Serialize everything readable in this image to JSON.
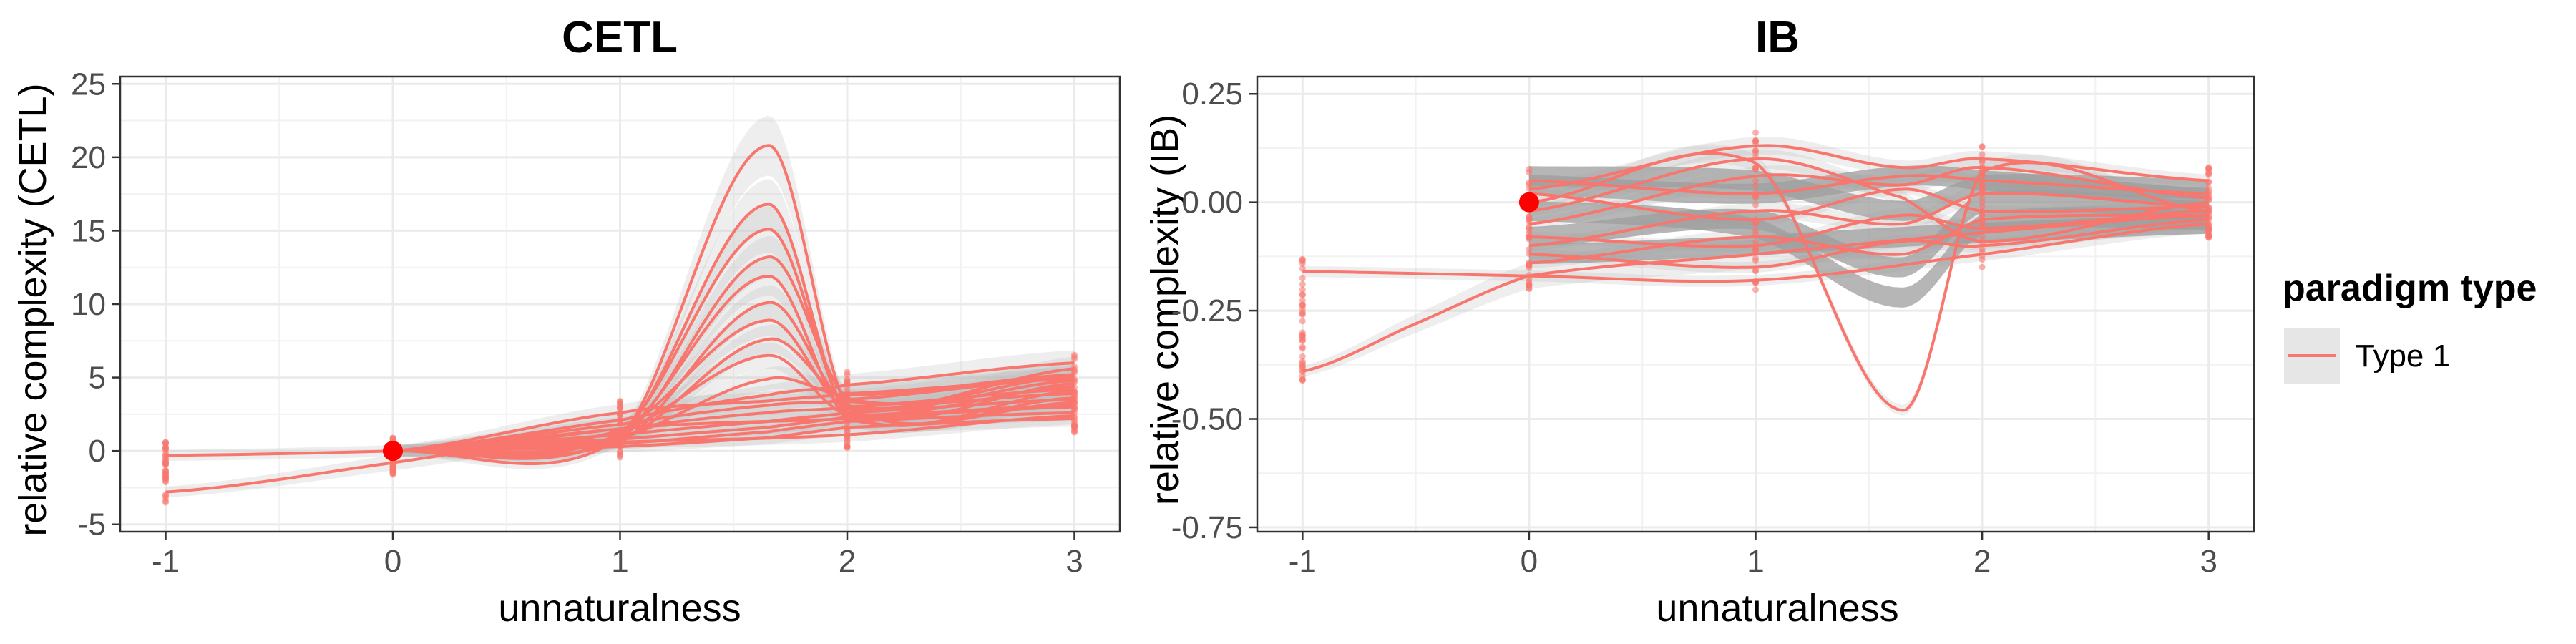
{
  "chart_data": [
    {
      "type": "line",
      "title": "CETL",
      "xlabel": "unnaturalness",
      "ylabel": "relative complexity (CETL)",
      "x_ticks": [
        -1,
        0,
        1,
        2,
        3
      ],
      "x_tick_labels": [
        "-1",
        "0",
        "1",
        "2",
        "3"
      ],
      "y_ticks": [
        -5,
        0,
        5,
        10,
        15,
        20,
        25
      ],
      "y_tick_labels": [
        "-5",
        "0",
        "5",
        "10",
        "15",
        "20",
        "25"
      ],
      "xlim": [
        -1.2,
        3.2
      ],
      "ylim": [
        -5.5,
        25.5
      ],
      "grid": true,
      "reference_point": {
        "x": 0,
        "y": 0,
        "color": "#ff0000"
      },
      "series": [
        {
          "x": [
            -1,
            0,
            1,
            2,
            3
          ],
          "values": [
            -2.8,
            -0.8,
            1.5,
            2.2,
            3.0
          ]
        },
        {
          "x": [
            -1,
            0,
            1,
            2,
            3
          ],
          "values": [
            -0.3,
            0.0,
            0.6,
            1.1,
            2.4
          ]
        },
        {
          "x": [
            0,
            1,
            1.65,
            2,
            3
          ],
          "values": [
            0.0,
            0.9,
            20.8,
            3.0,
            3.6
          ]
        },
        {
          "x": [
            0,
            1,
            1.65,
            2,
            3
          ],
          "values": [
            0.0,
            1.0,
            16.8,
            2.4,
            4.1
          ]
        },
        {
          "x": [
            0,
            1,
            1.65,
            2,
            3
          ],
          "values": [
            0.0,
            1.2,
            15.1,
            2.7,
            4.6
          ]
        },
        {
          "x": [
            0,
            1,
            1.65,
            2,
            3
          ],
          "values": [
            0.0,
            0.8,
            13.2,
            3.6,
            5.1
          ]
        },
        {
          "x": [
            0,
            1,
            1.65,
            2,
            3
          ],
          "values": [
            0.0,
            1.1,
            11.9,
            2.2,
            3.3
          ]
        },
        {
          "x": [
            0,
            1,
            1.65,
            2,
            3
          ],
          "values": [
            0.0,
            0.6,
            10.1,
            3.1,
            4.8
          ]
        },
        {
          "x": [
            0,
            1,
            1.65,
            2,
            3
          ],
          "values": [
            0.0,
            1.4,
            8.9,
            2.9,
            5.6
          ]
        },
        {
          "x": [
            0,
            1,
            1.65,
            2,
            3
          ],
          "values": [
            0.0,
            0.7,
            7.6,
            3.4,
            3.9
          ]
        },
        {
          "x": [
            0,
            1,
            1.65,
            2,
            3
          ],
          "values": [
            0.0,
            1.3,
            6.5,
            2.5,
            4.4
          ]
        },
        {
          "x": [
            0,
            1,
            1.65,
            2,
            3
          ],
          "values": [
            0.0,
            0.9,
            4.9,
            3.8,
            5.2
          ]
        },
        {
          "x": [
            0,
            1,
            1.65,
            2,
            3
          ],
          "values": [
            0.0,
            2.1,
            3.8,
            4.5,
            6.0
          ]
        },
        {
          "x": [
            0,
            1,
            1.65,
            2,
            3
          ],
          "values": [
            0.0,
            1.8,
            3.1,
            3.5,
            5.0
          ]
        },
        {
          "x": [
            0,
            1,
            1.65,
            2,
            3
          ],
          "values": [
            0.0,
            1.5,
            2.6,
            3.0,
            4.2
          ]
        },
        {
          "x": [
            0,
            1,
            1.65,
            2,
            3
          ],
          "values": [
            0.0,
            1.1,
            2.0,
            2.6,
            3.5
          ]
        },
        {
          "x": [
            0,
            1,
            1.65,
            2,
            3
          ],
          "values": [
            0.0,
            0.8,
            1.6,
            2.3,
            3.1
          ]
        },
        {
          "x": [
            0,
            1,
            1.65,
            2,
            3
          ],
          "values": [
            0.0,
            0.5,
            1.3,
            2.0,
            2.6
          ]
        },
        {
          "x": [
            0,
            1,
            1.65,
            2,
            3
          ],
          "values": [
            0.0,
            2.6,
            3.4,
            3.9,
            4.9
          ]
        },
        {
          "x": [
            0,
            1,
            1.65,
            2,
            3
          ],
          "values": [
            0.0,
            0.3,
            0.9,
            1.6,
            2.2
          ]
        }
      ]
    },
    {
      "type": "line",
      "title": "IB",
      "xlabel": "unnaturalness",
      "ylabel": "relative complexity (IB)",
      "x_ticks": [
        -1,
        0,
        1,
        2,
        3
      ],
      "x_tick_labels": [
        "-1",
        "0",
        "1",
        "2",
        "3"
      ],
      "y_ticks": [
        -0.75,
        -0.5,
        -0.25,
        0,
        0.25
      ],
      "y_tick_labels": [
        "-0.75",
        "-0.50",
        "-0.25",
        "0.00",
        "0.25"
      ],
      "xlim": [
        -1.2,
        3.2
      ],
      "ylim": [
        -0.76,
        0.29
      ],
      "grid": true,
      "reference_point": {
        "x": 0,
        "y": 0,
        "color": "#ff0000"
      },
      "series": [
        {
          "x": [
            -1,
            -0.5,
            0,
            1,
            2,
            3
          ],
          "values": [
            -0.39,
            -0.28,
            -0.17,
            -0.12,
            -0.07,
            -0.03
          ]
        },
        {
          "x": [
            -1,
            0,
            1,
            2,
            3
          ],
          "values": [
            -0.16,
            -0.17,
            -0.18,
            -0.12,
            -0.05
          ]
        },
        {
          "x": [
            0,
            1,
            1.65,
            2,
            3
          ],
          "values": [
            0.0,
            0.09,
            -0.48,
            0.07,
            -0.02
          ]
        },
        {
          "x": [
            0,
            1,
            1.65,
            2,
            3
          ],
          "values": [
            0.03,
            0.13,
            0.08,
            0.1,
            0.05
          ]
        },
        {
          "x": [
            0,
            1,
            1.65,
            2,
            3
          ],
          "values": [
            -0.05,
            0.06,
            0.04,
            0.08,
            0.01
          ]
        },
        {
          "x": [
            0,
            1,
            1.65,
            2,
            3
          ],
          "values": [
            -0.1,
            -0.02,
            -0.05,
            0.02,
            -0.01
          ]
        },
        {
          "x": [
            0,
            1,
            1.65,
            2,
            3
          ],
          "values": [
            -0.14,
            -0.08,
            -0.12,
            -0.04,
            -0.03
          ]
        },
        {
          "x": [
            0,
            1,
            1.65,
            2,
            3
          ],
          "values": [
            0.05,
            0.02,
            0.06,
            0.05,
            0.02
          ]
        },
        {
          "x": [
            0,
            1,
            1.65,
            2,
            3
          ],
          "values": [
            -0.08,
            -0.1,
            -0.03,
            -0.06,
            -0.02
          ]
        },
        {
          "x": [
            0,
            1,
            1.65,
            2,
            3
          ],
          "values": [
            -0.02,
            0.1,
            0.01,
            -0.09,
            0.0
          ]
        },
        {
          "x": [
            0,
            1,
            1.65,
            2,
            3
          ],
          "values": [
            -0.12,
            -0.15,
            -0.09,
            -0.1,
            -0.04
          ]
        },
        {
          "x": [
            0,
            1,
            1.65,
            2,
            3
          ],
          "values": [
            0.02,
            -0.04,
            0.03,
            -0.02,
            -0.01
          ]
        }
      ],
      "grey_bands": [
        {
          "x": [
            0,
            1,
            1.65,
            2,
            3
          ],
          "values": [
            -0.02,
            -0.06,
            -0.22,
            -0.05,
            -0.04
          ]
        },
        {
          "x": [
            0,
            1,
            1.65,
            2,
            3
          ],
          "values": [
            -0.08,
            -0.04,
            -0.15,
            0.0,
            -0.02
          ]
        },
        {
          "x": [
            0,
            1,
            1.65,
            2,
            3
          ],
          "values": [
            0.04,
            0.02,
            0.06,
            0.05,
            0.01
          ]
        },
        {
          "x": [
            0,
            1,
            1.65,
            2,
            3
          ],
          "values": [
            -0.12,
            -0.1,
            -0.08,
            -0.07,
            -0.05
          ]
        },
        {
          "x": [
            0,
            1,
            1.65,
            2,
            3
          ],
          "values": [
            0.06,
            0.05,
            -0.02,
            0.04,
            0.03
          ]
        }
      ]
    }
  ],
  "legend": {
    "title": "paradigm type",
    "items": [
      {
        "label": "Type 1",
        "color": "#f8766d"
      }
    ]
  },
  "colors": {
    "series": "#f8766d",
    "ribbon": "#bdbdbd",
    "grey_line": "#9e9e9e",
    "reference": "#ff0000"
  }
}
